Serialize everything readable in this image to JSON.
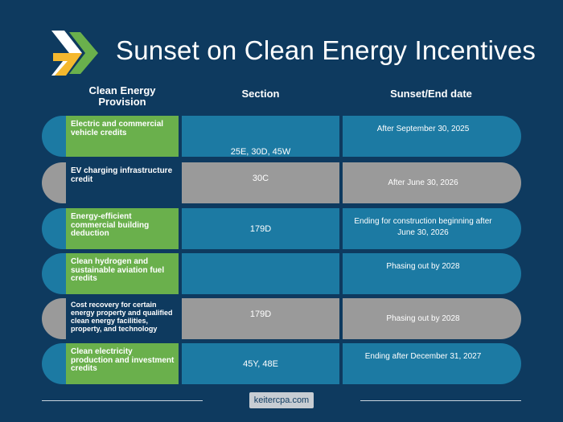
{
  "page": {
    "title": "Sunset on Clean Energy Incentives",
    "logo": "chevron-arrows-logo"
  },
  "headers": {
    "provision": "Clean Energy Provision",
    "section": "Section",
    "sunset": "Sunset/End date"
  },
  "rows": [
    {
      "provision": "Electric and commercial vehicle credits",
      "section": "25E, 30D, 45W",
      "sunset": "After September 30, 2025",
      "style": "blue"
    },
    {
      "provision": "EV charging infrastructure credit",
      "section": "30C",
      "sunset": "After June 30, 2026",
      "style": "gray"
    },
    {
      "provision": "Energy-efficient commercial building deduction",
      "section": "179D",
      "sunset": "Ending for construction beginning after June 30, 2026",
      "style": "blue"
    },
    {
      "provision": "Clean hydrogen and sustainable aviation fuel credits",
      "section": "",
      "sunset": "Phasing out by 2028",
      "style": "blue"
    },
    {
      "provision": "Cost recovery for certain energy property and qualified clean energy facilities, property,  and technology",
      "section": "179D",
      "sunset": "Phasing out by 2028",
      "style": "gray"
    },
    {
      "provision": "Clean electricity production and investment credits",
      "section": "45Y, 48E",
      "sunset": "Ending after December 31, 2027",
      "style": "blue"
    }
  ],
  "colors": {
    "background": "#0e3a5f",
    "blue": "#1c7aa3",
    "gray": "#9a9a9a",
    "green": "#6ab04c"
  },
  "footer": {
    "website": "keitercpa.com"
  }
}
